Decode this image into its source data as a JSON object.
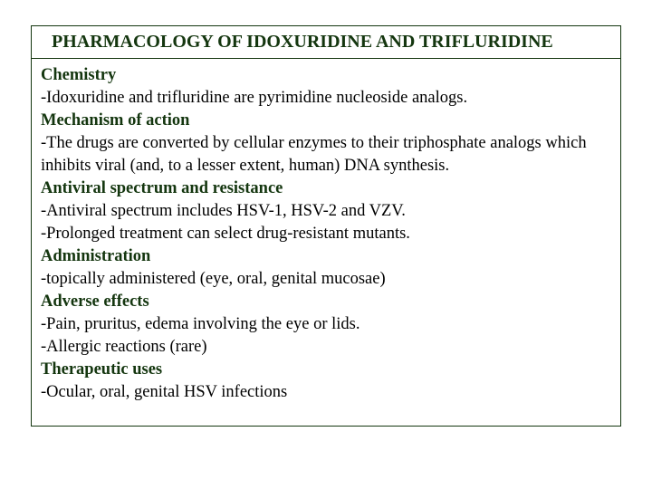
{
  "title": "PHARMACOLOGY OF IDOXURIDINE AND TRIFLURIDINE",
  "colors": {
    "border": "#14360f",
    "heading": "#14360f",
    "body_text": "#000000",
    "background": "#ffffff"
  },
  "typography": {
    "title_fontsize": 20,
    "body_fontsize": 18.5,
    "font_family": "Times New Roman",
    "title_weight": "bold",
    "heading_weight": "bold"
  },
  "sections": {
    "chemistry": {
      "heading": "Chemistry",
      "line1": "-Idoxuridine and trifluridine are pyrimidine nucleoside analogs."
    },
    "mechanism": {
      "heading": "Mechanism of action",
      "line1": "-The drugs are converted by cellular enzymes to their triphosphate analogs which inhibits viral (and, to a lesser extent, human) DNA synthesis."
    },
    "spectrum": {
      "heading": "Antiviral spectrum and resistance",
      "line1": "-Antiviral spectrum includes HSV-1, HSV-2 and VZV.",
      "line2": "-Prolonged treatment can select drug-resistant mutants."
    },
    "administration": {
      "heading": "Administration",
      "line1": "-topically administered (eye, oral, genital mucosae)"
    },
    "adverse": {
      "heading": "Adverse effects",
      "line1": "-Pain, pruritus, edema involving the eye or lids.",
      "line2": "-Allergic reactions (rare)"
    },
    "therapeutic": {
      "heading": "Therapeutic uses",
      "line1": "-Ocular, oral, genital HSV infections"
    }
  }
}
